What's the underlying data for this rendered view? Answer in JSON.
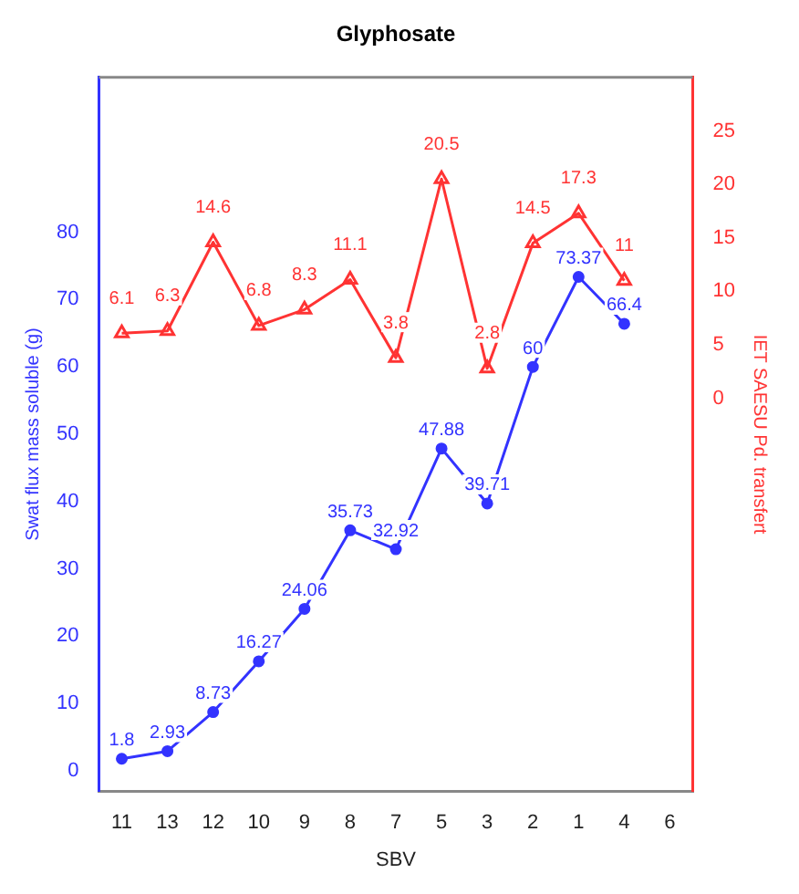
{
  "chart_data": {
    "type": "line",
    "title": "Glyphosate",
    "xlabel": "SBV",
    "ylabel": "Swat flux mass soluble (g)",
    "y2label": "IET SAESU Pd. transfert",
    "categories": [
      "11",
      "13",
      "12",
      "10",
      "9",
      "8",
      "7",
      "5",
      "3",
      "2",
      "1",
      "4",
      "6"
    ],
    "series": [
      {
        "name": null,
        "color": "#3333ff",
        "marker": "circle",
        "values": [
          1.8,
          2.93,
          8.73,
          16.27,
          24.06,
          35.73,
          32.92,
          47.88,
          39.71,
          60,
          73.37,
          66.4,
          null
        ]
      },
      {
        "name": null,
        "color": "#ff3333",
        "marker": "triangle",
        "axis": "y2",
        "values": [
          6.1,
          6.3,
          14.6,
          6.8,
          8.3,
          11.1,
          3.8,
          20.5,
          2.8,
          14.5,
          17.3,
          11,
          null
        ]
      }
    ],
    "ylim": [
      -3,
      103
    ],
    "yticks": [
      0,
      10,
      20,
      30,
      40,
      50,
      60,
      70,
      80
    ],
    "y2lim": [
      -36.7,
      30
    ],
    "y2ticks": [
      0,
      5,
      10,
      15,
      20,
      25
    ],
    "data_labels": true,
    "grid": false,
    "legend": false,
    "line_style": "solid"
  }
}
